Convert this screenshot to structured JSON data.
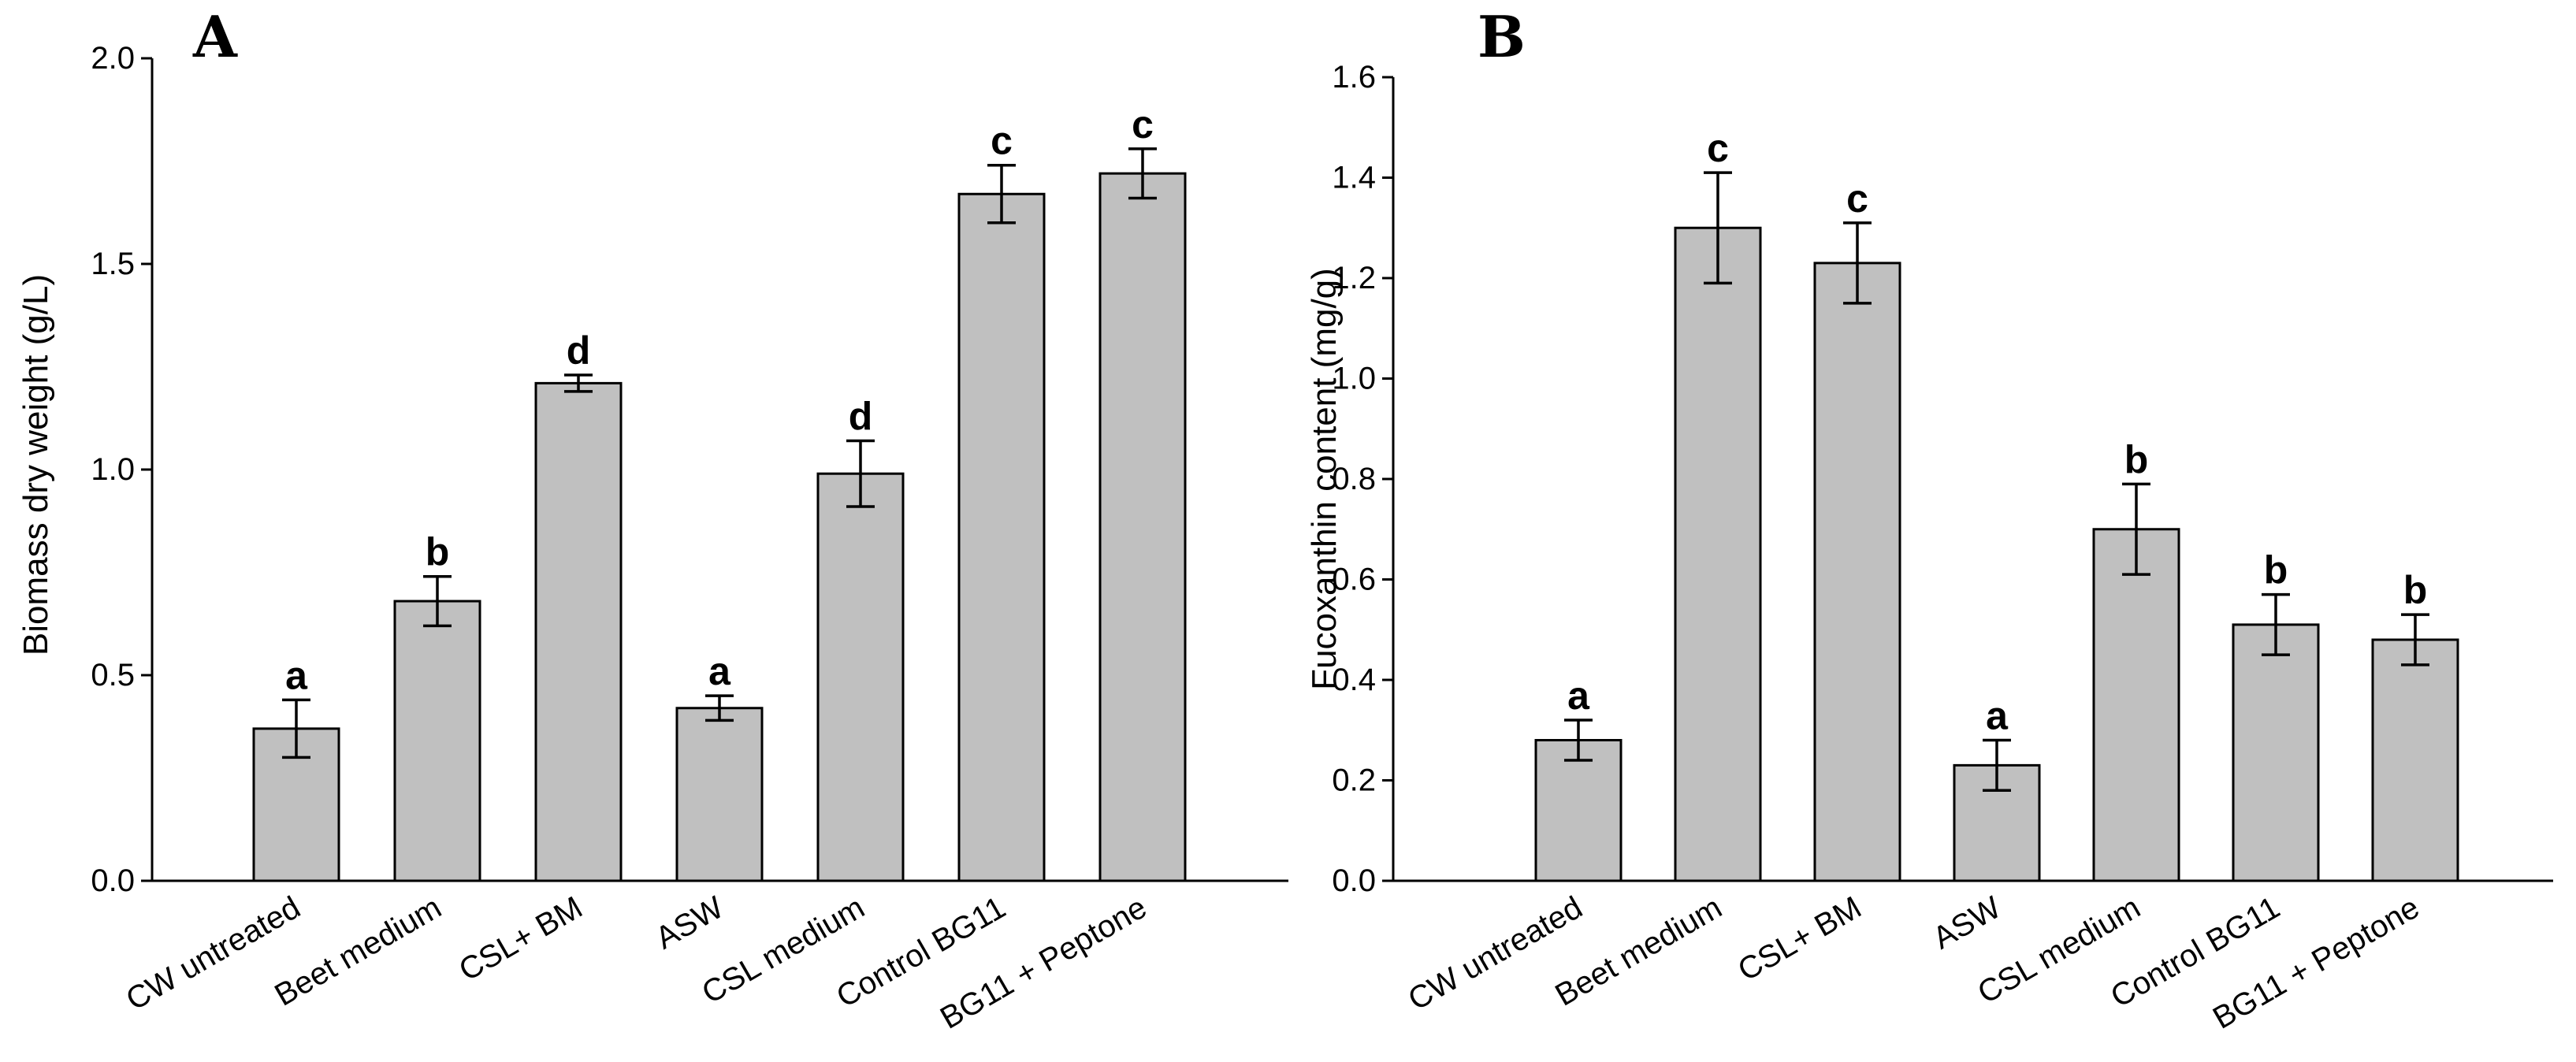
{
  "chart_data": [
    {
      "panel": "A",
      "type": "bar",
      "title": "",
      "xlabel": "",
      "ylabel": "Biomass dry weight (g/L)",
      "ylim": [
        0,
        2.0
      ],
      "yticks": [
        "0.0",
        "0.5",
        "1.0",
        "1.5",
        "2.0"
      ],
      "ytick_values": [
        0,
        0.5,
        1.0,
        1.5,
        2.0
      ],
      "categories": [
        "CW untreated",
        "Beet medium",
        "CSL+ BM",
        "ASW",
        "CSL medium",
        "Control BG11",
        "BG11 + Peptone"
      ],
      "values": [
        0.37,
        0.68,
        1.21,
        0.42,
        0.99,
        1.67,
        1.72
      ],
      "errors": [
        0.07,
        0.06,
        0.02,
        0.03,
        0.08,
        0.07,
        0.06
      ],
      "significance": [
        "a",
        "b",
        "d",
        "a",
        "d",
        "c",
        "c"
      ],
      "grid": false
    },
    {
      "panel": "B",
      "type": "bar",
      "title": "",
      "xlabel": "",
      "ylabel": "Fucoxanthin content (mg/g)",
      "ylim": [
        0,
        1.6
      ],
      "yticks": [
        "0.0",
        "0.2",
        "0.4",
        "0.6",
        "0.8",
        "1.0",
        "1.2",
        "1.4",
        "1.6"
      ],
      "ytick_values": [
        0,
        0.2,
        0.4,
        0.6,
        0.8,
        1.0,
        1.2,
        1.4,
        1.6
      ],
      "categories": [
        "CW untreated",
        "Beet medium",
        "CSL+ BM",
        "ASW",
        "CSL medium",
        "Control BG11",
        "BG11 + Peptone"
      ],
      "values": [
        0.28,
        1.3,
        1.23,
        0.23,
        0.7,
        0.51,
        0.48
      ],
      "errors": [
        0.04,
        0.11,
        0.08,
        0.05,
        0.09,
        0.06,
        0.05
      ],
      "significance": [
        "a",
        "c",
        "c",
        "a",
        "b",
        "b",
        "b"
      ],
      "grid": false
    }
  ]
}
